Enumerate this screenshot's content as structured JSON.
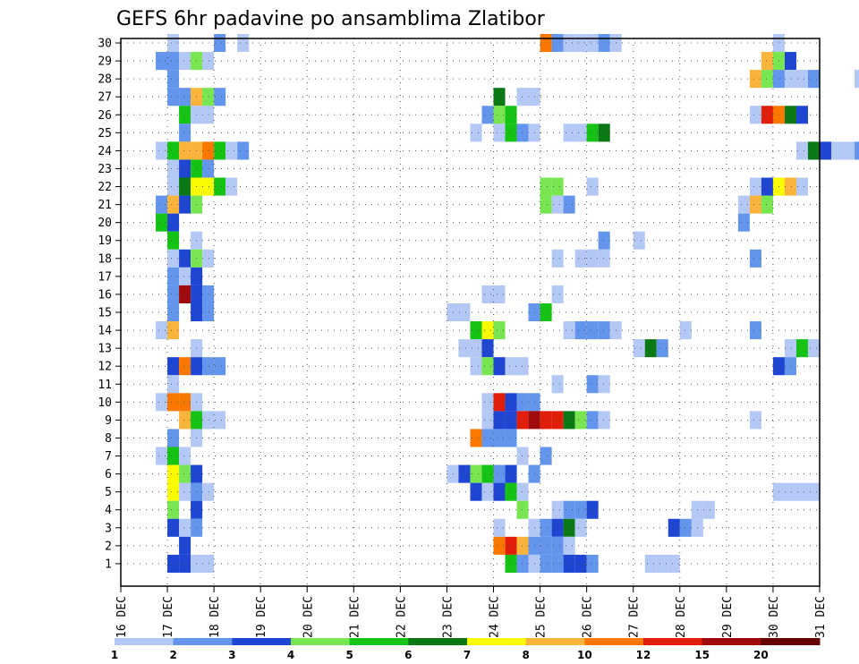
{
  "chart_data": {
    "type": "heatmap",
    "title": "GEFS 6hr padavine po ansamblima Zlatibor",
    "y_ticks": [
      "1",
      "2",
      "3",
      "4",
      "5",
      "6",
      "7",
      "8",
      "9",
      "10",
      "11",
      "12",
      "13",
      "14",
      "15",
      "16",
      "17",
      "18",
      "19",
      "20",
      "21",
      "22",
      "23",
      "24",
      "25",
      "26",
      "27",
      "28",
      "29",
      "30"
    ],
    "x_ticks": [
      "16 DEC",
      "17 DEC",
      "18 DEC",
      "19 DEC",
      "20 DEC",
      "21 DEC",
      "22 DEC",
      "23 DEC",
      "24 DEC",
      "25 DEC",
      "26 DEC",
      "27 DEC",
      "28 DEC",
      "29 DEC",
      "30 DEC",
      "31 DEC"
    ],
    "x_range_days": [
      16,
      31
    ],
    "steps_per_day": 4,
    "grid": true,
    "colorbar": {
      "position": "bottom",
      "tick_labels": [
        "1",
        "2",
        "3",
        "4",
        "5",
        "6",
        "7",
        "8",
        "10",
        "12",
        "15",
        "20"
      ],
      "colors": [
        "#b4c8f5",
        "#6495ed",
        "#1e46d2",
        "#78e650",
        "#14c314",
        "#0a7814",
        "#fafa00",
        "#fab43c",
        "#fa7800",
        "#e11e0a",
        "#a00a0a",
        "#640000"
      ]
    },
    "cells": [
      [
        30,
        17,
        1
      ],
      [
        30,
        18,
        2
      ],
      [
        30,
        18.5,
        1
      ],
      [
        30,
        25,
        10
      ],
      [
        30,
        25.25,
        2
      ],
      [
        30,
        25.5,
        1
      ],
      [
        30,
        25.75,
        1
      ],
      [
        30,
        26,
        1
      ],
      [
        30,
        26.25,
        2
      ],
      [
        30,
        26.5,
        1
      ],
      [
        30,
        30,
        1
      ],
      [
        29,
        16.75,
        2
      ],
      [
        29,
        17,
        2
      ],
      [
        29,
        17.25,
        1
      ],
      [
        29,
        17.5,
        4
      ],
      [
        29,
        17.75,
        1
      ],
      [
        29,
        29.75,
        8
      ],
      [
        29,
        30,
        4
      ],
      [
        29,
        30.25,
        3
      ],
      [
        28,
        17,
        2
      ],
      [
        28,
        29.5,
        8
      ],
      [
        28,
        29.75,
        4
      ],
      [
        28,
        30,
        2
      ],
      [
        28,
        30.25,
        1
      ],
      [
        28,
        30.5,
        1
      ],
      [
        28,
        30.75,
        2
      ],
      [
        28,
        31.75,
        1
      ],
      [
        27,
        17,
        2
      ],
      [
        27,
        17.25,
        2
      ],
      [
        27,
        17.5,
        8
      ],
      [
        27,
        17.75,
        4
      ],
      [
        27,
        18,
        2
      ],
      [
        27,
        24,
        6
      ],
      [
        27,
        24.5,
        1
      ],
      [
        27,
        24.75,
        1
      ],
      [
        26,
        17.25,
        5
      ],
      [
        26,
        17.5,
        1
      ],
      [
        26,
        17.75,
        1
      ],
      [
        26,
        23.75,
        2
      ],
      [
        26,
        24,
        4
      ],
      [
        26,
        24.25,
        5
      ],
      [
        26,
        29.5,
        1
      ],
      [
        26,
        29.75,
        12
      ],
      [
        26,
        30,
        10
      ],
      [
        26,
        30.25,
        6
      ],
      [
        26,
        30.5,
        3
      ],
      [
        25,
        17.25,
        2
      ],
      [
        25,
        23.5,
        1
      ],
      [
        25,
        24,
        1
      ],
      [
        25,
        24.25,
        5
      ],
      [
        25,
        24.5,
        2
      ],
      [
        25,
        24.75,
        1
      ],
      [
        25,
        25.5,
        1
      ],
      [
        25,
        25.75,
        1
      ],
      [
        25,
        26,
        5
      ],
      [
        25,
        26.25,
        6
      ],
      [
        24,
        16.75,
        1
      ],
      [
        24,
        17,
        5
      ],
      [
        24,
        17.25,
        8
      ],
      [
        24,
        17.5,
        8
      ],
      [
        24,
        17.75,
        10
      ],
      [
        24,
        18,
        5
      ],
      [
        24,
        18.25,
        1
      ],
      [
        24,
        18.5,
        2
      ],
      [
        24,
        30.5,
        1
      ],
      [
        24,
        30.75,
        6
      ],
      [
        24,
        31,
        3
      ],
      [
        24,
        31.25,
        1
      ],
      [
        24,
        31.5,
        1
      ],
      [
        24,
        31.75,
        2
      ],
      [
        23,
        17,
        1
      ],
      [
        23,
        17.25,
        3
      ],
      [
        23,
        17.5,
        5
      ],
      [
        23,
        17.75,
        2
      ],
      [
        22,
        17,
        1
      ],
      [
        22,
        17.25,
        6
      ],
      [
        22,
        17.5,
        7
      ],
      [
        22,
        17.75,
        7
      ],
      [
        22,
        18,
        5
      ],
      [
        22,
        18.25,
        1
      ],
      [
        22,
        25,
        4
      ],
      [
        22,
        25.25,
        4
      ],
      [
        22,
        26,
        1
      ],
      [
        22,
        29.5,
        1
      ],
      [
        22,
        29.75,
        3
      ],
      [
        22,
        30,
        7
      ],
      [
        22,
        30.25,
        8
      ],
      [
        22,
        30.5,
        1
      ],
      [
        21,
        16.75,
        2
      ],
      [
        21,
        17,
        8
      ],
      [
        21,
        17.25,
        3
      ],
      [
        21,
        17.5,
        4
      ],
      [
        21,
        25,
        4
      ],
      [
        21,
        25.25,
        1
      ],
      [
        21,
        25.5,
        2
      ],
      [
        21,
        29.25,
        1
      ],
      [
        21,
        29.5,
        8
      ],
      [
        21,
        29.75,
        4
      ],
      [
        20,
        16.75,
        5
      ],
      [
        20,
        17,
        3
      ],
      [
        20,
        29.25,
        2
      ],
      [
        19,
        17,
        5
      ],
      [
        19,
        17.5,
        1
      ],
      [
        19,
        26.25,
        2
      ],
      [
        19,
        27,
        1
      ],
      [
        18,
        17,
        1
      ],
      [
        18,
        17.25,
        3
      ],
      [
        18,
        17.5,
        4
      ],
      [
        18,
        17.75,
        1
      ],
      [
        18,
        25.25,
        1
      ],
      [
        18,
        25.75,
        1
      ],
      [
        18,
        26,
        1
      ],
      [
        18,
        26.25,
        1
      ],
      [
        18,
        29.5,
        2
      ],
      [
        17,
        17,
        2
      ],
      [
        17,
        17.25,
        1
      ],
      [
        17,
        17.5,
        3
      ],
      [
        16,
        17,
        2
      ],
      [
        16,
        17.25,
        15
      ],
      [
        16,
        17.5,
        3
      ],
      [
        16,
        17.75,
        2
      ],
      [
        16,
        23.75,
        1
      ],
      [
        16,
        24,
        1
      ],
      [
        16,
        25.25,
        1
      ],
      [
        15,
        17,
        2
      ],
      [
        15,
        17.5,
        3
      ],
      [
        15,
        17.75,
        2
      ],
      [
        15,
        23,
        1
      ],
      [
        15,
        23.25,
        1
      ],
      [
        15,
        24.75,
        2
      ],
      [
        15,
        25,
        5
      ],
      [
        14,
        16.75,
        1
      ],
      [
        14,
        17,
        8
      ],
      [
        14,
        23.5,
        5
      ],
      [
        14,
        23.75,
        7
      ],
      [
        14,
        24,
        4
      ],
      [
        14,
        25.5,
        1
      ],
      [
        14,
        25.75,
        2
      ],
      [
        14,
        26,
        2
      ],
      [
        14,
        26.25,
        2
      ],
      [
        14,
        26.5,
        1
      ],
      [
        14,
        28,
        1
      ],
      [
        14,
        29.5,
        2
      ],
      [
        13,
        17.5,
        1
      ],
      [
        13,
        23.25,
        1
      ],
      [
        13,
        23.5,
        1
      ],
      [
        13,
        23.75,
        3
      ],
      [
        13,
        27,
        1
      ],
      [
        13,
        27.25,
        6
      ],
      [
        13,
        27.5,
        2
      ],
      [
        13,
        30.25,
        1
      ],
      [
        13,
        30.5,
        5
      ],
      [
        13,
        30.75,
        1
      ],
      [
        12,
        17,
        3
      ],
      [
        12,
        17.25,
        10
      ],
      [
        12,
        17.5,
        3
      ],
      [
        12,
        17.75,
        2
      ],
      [
        12,
        18,
        2
      ],
      [
        12,
        23.5,
        1
      ],
      [
        12,
        23.75,
        4
      ],
      [
        12,
        24,
        3
      ],
      [
        12,
        24.25,
        1
      ],
      [
        12,
        24.5,
        1
      ],
      [
        12,
        30,
        3
      ],
      [
        12,
        30.25,
        2
      ],
      [
        11,
        17,
        1
      ],
      [
        11,
        25.25,
        1
      ],
      [
        11,
        26,
        2
      ],
      [
        11,
        26.25,
        1
      ],
      [
        10,
        16.75,
        1
      ],
      [
        10,
        17,
        10
      ],
      [
        10,
        17.25,
        10
      ],
      [
        10,
        17.5,
        1
      ],
      [
        10,
        23.75,
        1
      ],
      [
        10,
        24,
        12
      ],
      [
        10,
        24.25,
        3
      ],
      [
        10,
        24.5,
        2
      ],
      [
        10,
        24.75,
        2
      ],
      [
        9,
        17.25,
        8
      ],
      [
        9,
        17.5,
        5
      ],
      [
        9,
        17.75,
        1
      ],
      [
        9,
        18,
        1
      ],
      [
        9,
        23.75,
        1
      ],
      [
        9,
        24,
        3
      ],
      [
        9,
        24.25,
        3
      ],
      [
        9,
        24.5,
        12
      ],
      [
        9,
        24.75,
        15
      ],
      [
        9,
        25,
        12
      ],
      [
        9,
        25.25,
        12
      ],
      [
        9,
        25.5,
        6
      ],
      [
        9,
        25.75,
        4
      ],
      [
        9,
        26,
        2
      ],
      [
        9,
        26.25,
        1
      ],
      [
        9,
        29.5,
        1
      ],
      [
        8,
        17,
        2
      ],
      [
        8,
        17.5,
        1
      ],
      [
        8,
        23.5,
        10
      ],
      [
        8,
        23.75,
        2
      ],
      [
        8,
        24,
        2
      ],
      [
        8,
        24.25,
        2
      ],
      [
        7,
        16.75,
        1
      ],
      [
        7,
        17,
        5
      ],
      [
        7,
        17.25,
        1
      ],
      [
        7,
        24.5,
        1
      ],
      [
        7,
        25,
        2
      ],
      [
        6,
        17,
        7
      ],
      [
        6,
        17.25,
        4
      ],
      [
        6,
        17.5,
        3
      ],
      [
        6,
        23,
        1
      ],
      [
        6,
        23.25,
        3
      ],
      [
        6,
        23.5,
        4
      ],
      [
        6,
        23.75,
        5
      ],
      [
        6,
        24,
        2
      ],
      [
        6,
        24.25,
        3
      ],
      [
        6,
        24.75,
        2
      ],
      [
        5,
        17,
        7
      ],
      [
        5,
        17.25,
        1
      ],
      [
        5,
        17.5,
        2
      ],
      [
        5,
        17.75,
        1
      ],
      [
        5,
        23.5,
        3
      ],
      [
        5,
        23.75,
        1
      ],
      [
        5,
        24,
        3
      ],
      [
        5,
        24.25,
        5
      ],
      [
        5,
        24.5,
        1
      ],
      [
        5,
        30,
        1
      ],
      [
        5,
        30.25,
        1
      ],
      [
        5,
        30.5,
        1
      ],
      [
        5,
        30.75,
        1
      ],
      [
        4,
        17,
        4
      ],
      [
        4,
        17.5,
        3
      ],
      [
        4,
        24.5,
        4
      ],
      [
        4,
        25.25,
        1
      ],
      [
        4,
        25.5,
        2
      ],
      [
        4,
        25.75,
        2
      ],
      [
        4,
        26,
        3
      ],
      [
        4,
        28.25,
        1
      ],
      [
        4,
        28.5,
        1
      ],
      [
        3,
        17,
        3
      ],
      [
        3,
        17.25,
        1
      ],
      [
        3,
        17.5,
        2
      ],
      [
        3,
        24,
        1
      ],
      [
        3,
        24.75,
        1
      ],
      [
        3,
        25,
        2
      ],
      [
        3,
        25.25,
        3
      ],
      [
        3,
        25.5,
        6
      ],
      [
        3,
        25.75,
        1
      ],
      [
        3,
        27.75,
        3
      ],
      [
        3,
        28,
        2
      ],
      [
        3,
        28.25,
        1
      ],
      [
        2,
        17.25,
        3
      ],
      [
        2,
        24,
        10
      ],
      [
        2,
        24.25,
        12
      ],
      [
        2,
        24.5,
        8
      ],
      [
        2,
        24.75,
        2
      ],
      [
        2,
        25,
        2
      ],
      [
        2,
        25.25,
        2
      ],
      [
        2,
        25.5,
        1
      ],
      [
        1,
        17,
        3
      ],
      [
        1,
        17.25,
        3
      ],
      [
        1,
        17.5,
        1
      ],
      [
        1,
        17.75,
        1
      ],
      [
        1,
        24.25,
        5
      ],
      [
        1,
        24.5,
        2
      ],
      [
        1,
        24.75,
        1
      ],
      [
        1,
        25,
        2
      ],
      [
        1,
        25.25,
        2
      ],
      [
        1,
        25.5,
        3
      ],
      [
        1,
        25.75,
        3
      ],
      [
        1,
        26,
        2
      ],
      [
        1,
        27.25,
        1
      ],
      [
        1,
        27.5,
        1
      ],
      [
        1,
        27.75,
        1
      ]
    ]
  }
}
